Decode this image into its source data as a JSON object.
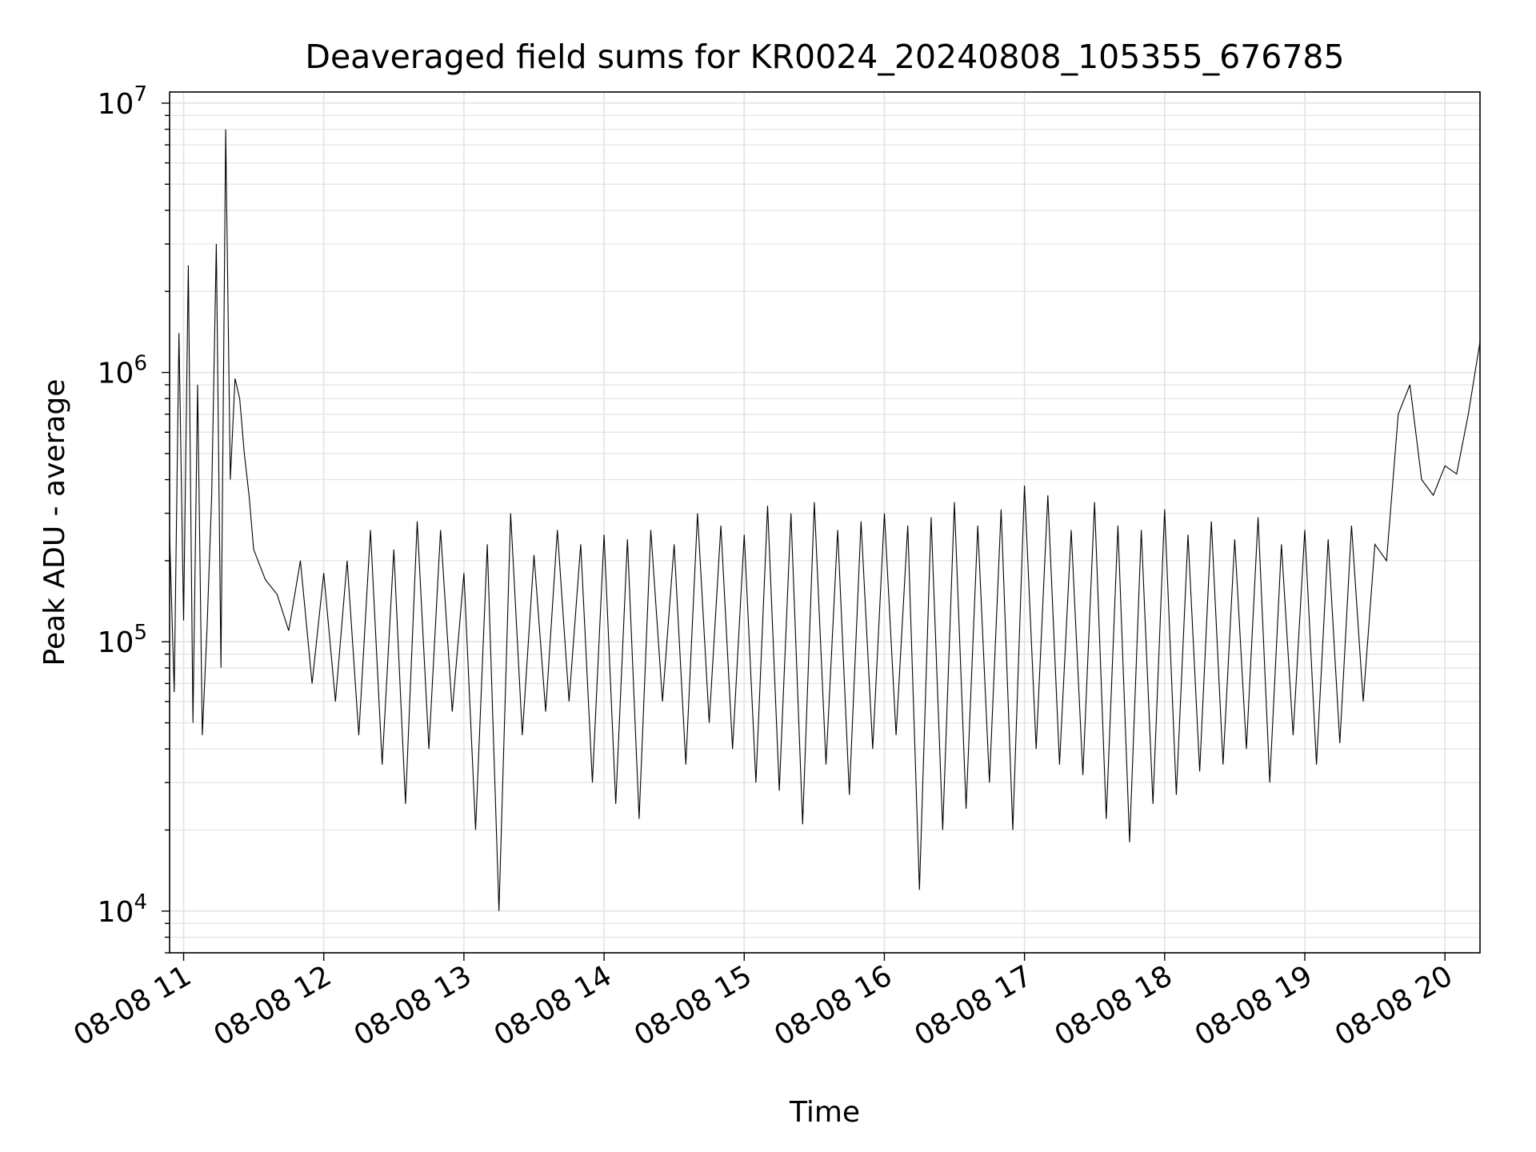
{
  "chart_data": {
    "type": "line",
    "title": "Deaveraged field sums for KR0024_20240808_105355_676785",
    "xlabel": "Time",
    "ylabel": "Peak ADU - average",
    "yscale": "log",
    "ylim": [
      7000,
      11000000
    ],
    "xlim": [
      "2024-08-08 10:54",
      "2024-08-08 20:15"
    ],
    "grid": true,
    "line_color": "#000000",
    "x_ticks": [
      {
        "value": "2024-08-08 11:00",
        "label": "08-08 11"
      },
      {
        "value": "2024-08-08 12:00",
        "label": "08-08 12"
      },
      {
        "value": "2024-08-08 13:00",
        "label": "08-08 13"
      },
      {
        "value": "2024-08-08 14:00",
        "label": "08-08 14"
      },
      {
        "value": "2024-08-08 15:00",
        "label": "08-08 15"
      },
      {
        "value": "2024-08-08 16:00",
        "label": "08-08 16"
      },
      {
        "value": "2024-08-08 17:00",
        "label": "08-08 17"
      },
      {
        "value": "2024-08-08 18:00",
        "label": "08-08 18"
      },
      {
        "value": "2024-08-08 19:00",
        "label": "08-08 19"
      },
      {
        "value": "2024-08-08 20:00",
        "label": "08-08 20"
      }
    ],
    "y_ticks": [
      {
        "value": 10000,
        "base": "10",
        "exp": "4"
      },
      {
        "value": 100000,
        "base": "10",
        "exp": "5"
      },
      {
        "value": 1000000,
        "base": "10",
        "exp": "6"
      },
      {
        "value": 10000000,
        "base": "10",
        "exp": "7"
      }
    ],
    "series": [
      {
        "x": [
          "2024-08-08 10:54",
          "2024-08-08 10:56",
          "2024-08-08 10:58",
          "2024-08-08 11:00",
          "2024-08-08 11:02",
          "2024-08-08 11:04",
          "2024-08-08 11:06",
          "2024-08-08 11:08",
          "2024-08-08 11:10",
          "2024-08-08 11:12",
          "2024-08-08 11:14",
          "2024-08-08 11:16",
          "2024-08-08 11:18",
          "2024-08-08 11:20",
          "2024-08-08 11:22",
          "2024-08-08 11:24",
          "2024-08-08 11:26",
          "2024-08-08 11:28",
          "2024-08-08 11:30",
          "2024-08-08 11:35",
          "2024-08-08 11:40",
          "2024-08-08 11:45",
          "2024-08-08 11:50",
          "2024-08-08 11:55",
          "2024-08-08 12:00",
          "2024-08-08 12:05",
          "2024-08-08 12:10",
          "2024-08-08 12:15",
          "2024-08-08 12:20",
          "2024-08-08 12:25",
          "2024-08-08 12:30",
          "2024-08-08 12:35",
          "2024-08-08 12:40",
          "2024-08-08 12:45",
          "2024-08-08 12:50",
          "2024-08-08 12:55",
          "2024-08-08 13:00",
          "2024-08-08 13:05",
          "2024-08-08 13:10",
          "2024-08-08 13:15",
          "2024-08-08 13:20",
          "2024-08-08 13:25",
          "2024-08-08 13:30",
          "2024-08-08 13:35",
          "2024-08-08 13:40",
          "2024-08-08 13:45",
          "2024-08-08 13:50",
          "2024-08-08 13:55",
          "2024-08-08 14:00",
          "2024-08-08 14:05",
          "2024-08-08 14:10",
          "2024-08-08 14:15",
          "2024-08-08 14:20",
          "2024-08-08 14:25",
          "2024-08-08 14:30",
          "2024-08-08 14:35",
          "2024-08-08 14:40",
          "2024-08-08 14:45",
          "2024-08-08 14:50",
          "2024-08-08 14:55",
          "2024-08-08 15:00",
          "2024-08-08 15:05",
          "2024-08-08 15:10",
          "2024-08-08 15:15",
          "2024-08-08 15:20",
          "2024-08-08 15:25",
          "2024-08-08 15:30",
          "2024-08-08 15:35",
          "2024-08-08 15:40",
          "2024-08-08 15:45",
          "2024-08-08 15:50",
          "2024-08-08 15:55",
          "2024-08-08 16:00",
          "2024-08-08 16:05",
          "2024-08-08 16:10",
          "2024-08-08 16:15",
          "2024-08-08 16:20",
          "2024-08-08 16:25",
          "2024-08-08 16:30",
          "2024-08-08 16:35",
          "2024-08-08 16:40",
          "2024-08-08 16:45",
          "2024-08-08 16:50",
          "2024-08-08 16:55",
          "2024-08-08 17:00",
          "2024-08-08 17:05",
          "2024-08-08 17:10",
          "2024-08-08 17:15",
          "2024-08-08 17:20",
          "2024-08-08 17:25",
          "2024-08-08 17:30",
          "2024-08-08 17:35",
          "2024-08-08 17:40",
          "2024-08-08 17:45",
          "2024-08-08 17:50",
          "2024-08-08 17:55",
          "2024-08-08 18:00",
          "2024-08-08 18:05",
          "2024-08-08 18:10",
          "2024-08-08 18:15",
          "2024-08-08 18:20",
          "2024-08-08 18:25",
          "2024-08-08 18:30",
          "2024-08-08 18:35",
          "2024-08-08 18:40",
          "2024-08-08 18:45",
          "2024-08-08 18:50",
          "2024-08-08 18:55",
          "2024-08-08 19:00",
          "2024-08-08 19:05",
          "2024-08-08 19:10",
          "2024-08-08 19:15",
          "2024-08-08 19:20",
          "2024-08-08 19:25",
          "2024-08-08 19:30",
          "2024-08-08 19:35",
          "2024-08-08 19:40",
          "2024-08-08 19:45",
          "2024-08-08 19:50",
          "2024-08-08 19:55",
          "2024-08-08 20:00",
          "2024-08-08 20:05",
          "2024-08-08 20:10",
          "2024-08-08 20:15"
        ],
        "y": [
          250000,
          65000,
          1400000,
          120000,
          2500000,
          50000,
          900000,
          45000,
          110000,
          350000,
          3000000,
          80000,
          8000000,
          400000,
          950000,
          800000,
          500000,
          350000,
          220000,
          170000,
          150000,
          110000,
          200000,
          70000,
          180000,
          60000,
          200000,
          45000,
          260000,
          35000,
          220000,
          25000,
          280000,
          40000,
          260000,
          55000,
          180000,
          20000,
          230000,
          10000,
          300000,
          45000,
          210000,
          55000,
          260000,
          60000,
          230000,
          30000,
          250000,
          25000,
          240000,
          22000,
          260000,
          60000,
          230000,
          35000,
          300000,
          50000,
          270000,
          40000,
          250000,
          30000,
          320000,
          28000,
          300000,
          21000,
          330000,
          35000,
          260000,
          27000,
          280000,
          40000,
          300000,
          45000,
          270000,
          12000,
          290000,
          20000,
          330000,
          24000,
          270000,
          30000,
          310000,
          20000,
          380000,
          40000,
          350000,
          35000,
          260000,
          32000,
          330000,
          22000,
          270000,
          18000,
          260000,
          25000,
          310000,
          27000,
          250000,
          33000,
          280000,
          35000,
          240000,
          40000,
          290000,
          30000,
          230000,
          45000,
          260000,
          35000,
          240000,
          42000,
          270000,
          60000,
          230000,
          200000,
          700000,
          900000,
          400000,
          350000,
          450000,
          420000,
          700000,
          1300000
        ]
      }
    ]
  }
}
